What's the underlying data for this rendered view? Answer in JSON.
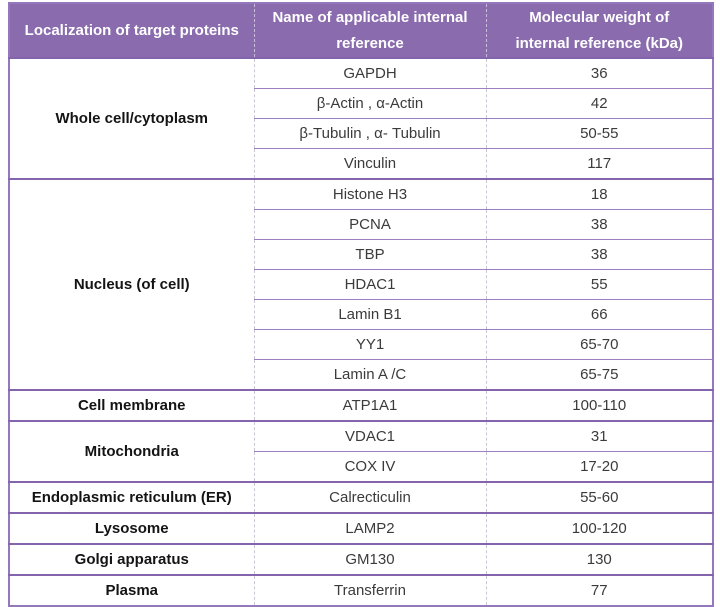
{
  "table": {
    "headers": [
      "Localization of target proteins",
      "Name of applicable internal reference",
      "Molecular weight of internal reference (kDa)"
    ],
    "groups": [
      {
        "localization": "Whole cell/cytoplasm",
        "rows": [
          {
            "name": "GAPDH",
            "weight": "36"
          },
          {
            "name": "β-Actin , α-Actin",
            "weight": "42"
          },
          {
            "name": "β-Tubulin , α- Tubulin",
            "weight": "50-55"
          },
          {
            "name": "Vinculin",
            "weight": "117"
          }
        ]
      },
      {
        "localization": "Nucleus (of cell)",
        "rows": [
          {
            "name": "Histone H3",
            "weight": "18"
          },
          {
            "name": "PCNA",
            "weight": "38"
          },
          {
            "name": "TBP",
            "weight": "38"
          },
          {
            "name": "HDAC1",
            "weight": "55"
          },
          {
            "name": "Lamin B1",
            "weight": "66"
          },
          {
            "name": "YY1",
            "weight": "65-70"
          },
          {
            "name": "Lamin A /C",
            "weight": "65-75"
          }
        ]
      },
      {
        "localization": "Cell membrane",
        "rows": [
          {
            "name": "ATP1A1",
            "weight": "100-110"
          }
        ]
      },
      {
        "localization": "Mitochondria",
        "rows": [
          {
            "name": "VDAC1",
            "weight": "31"
          },
          {
            "name": "COX IV",
            "weight": "17-20"
          }
        ]
      },
      {
        "localization": "Endoplasmic reticulum (ER)",
        "rows": [
          {
            "name": "Calrecticulin",
            "weight": "55-60"
          }
        ]
      },
      {
        "localization": "Lysosome",
        "rows": [
          {
            "name": "LAMP2",
            "weight": "100-120"
          }
        ]
      },
      {
        "localization": "Golgi apparatus",
        "rows": [
          {
            "name": "GM130",
            "weight": "130"
          }
        ]
      },
      {
        "localization": "Plasma",
        "rows": [
          {
            "name": "Transferrin",
            "weight": "77"
          }
        ]
      }
    ]
  },
  "colors": {
    "header_bg": "#8a6cae",
    "outer_border": "#9577bd",
    "group_line": "#8465ad",
    "sub_line": "#9d80c4",
    "vertical_dashed_line": "#ccc6d2",
    "body_text": "#3b3b3b",
    "localization_text": "#141414",
    "header_text": "#ffffff"
  }
}
